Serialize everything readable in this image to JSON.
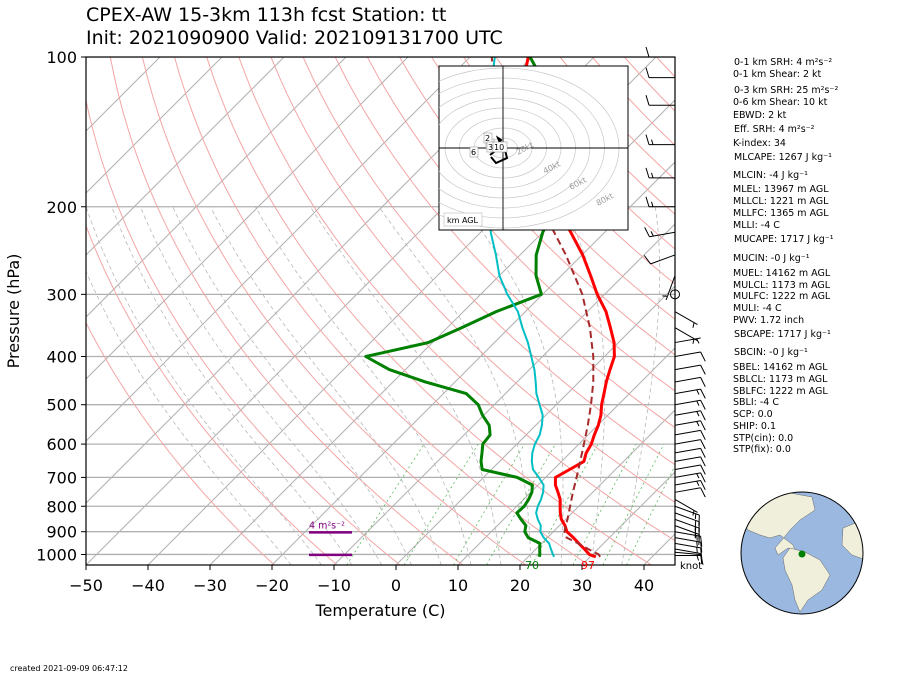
{
  "title_line1": "CPEX-AW 15-3km  113h fcst  Station: tt",
  "title_line2": "Init: 2021090900  Valid: 202109131700 UTC",
  "created": "created 2021-09-09 06:47:12",
  "colors": {
    "temperature": "#ff0000",
    "dewpoint": "#008000",
    "wetbulb": "#00bfc4",
    "parcel": "#a52a2a",
    "srh": "#800080",
    "globe_ocean": "#9ab8e0",
    "globe_land": "#efefdb",
    "station": "#008000"
  },
  "chart_data": {
    "type": "line",
    "title": "CPEX-AW 15-3km  113h fcst  Station: tt",
    "subtitle": "Init: 2021090900  Valid: 202109131700 UTC",
    "xlabel": "Temperature (C)",
    "ylabel": "Pressure (hPa)",
    "xlim": [
      -50,
      45
    ],
    "ylim": [
      1050,
      100
    ],
    "y_scale": "log",
    "x_ticks": [
      -50,
      -40,
      -30,
      -20,
      -10,
      0,
      10,
      20,
      30,
      40
    ],
    "y_ticks": [
      100,
      200,
      300,
      400,
      500,
      600,
      700,
      800,
      900,
      1000
    ],
    "grid": true,
    "series": [
      {
        "key": "temperature",
        "pressure": [
          1011,
          1000,
          975,
          950,
          925,
          900,
          875,
          850,
          825,
          800,
          775,
          750,
          725,
          700,
          675,
          650,
          625,
          600,
          575,
          550,
          525,
          500,
          475,
          450,
          425,
          400,
          375,
          350,
          325,
          300,
          275,
          250,
          225,
          200,
          175,
          150,
          125,
          100
        ],
        "values": [
          30.9,
          29.5,
          27.8,
          26.0,
          24.2,
          22.2,
          20.9,
          19.3,
          18.1,
          17.0,
          15.9,
          14.4,
          12.8,
          11.6,
          12.6,
          13.6,
          12.6,
          12.0,
          11.0,
          10.1,
          8.9,
          7.3,
          5.9,
          4.4,
          3.0,
          1.6,
          -0.7,
          -3.7,
          -7.0,
          -11.2,
          -15.3,
          -19.9,
          -25.5,
          -31.9,
          -39.3,
          -46.6,
          -54.5,
          -60.6
        ]
      },
      {
        "key": "dewpoint",
        "pressure": [
          1011,
          1000,
          975,
          950,
          925,
          900,
          875,
          850,
          825,
          800,
          775,
          750,
          725,
          700,
          675,
          650,
          625,
          600,
          575,
          550,
          525,
          500,
          475,
          450,
          425,
          400,
          375,
          350,
          325,
          300,
          275,
          250,
          225,
          200,
          175,
          150,
          125,
          100
        ],
        "values": [
          21.8,
          21.5,
          20.6,
          19.7,
          16.9,
          15.4,
          14.6,
          12.8,
          11.1,
          11.2,
          10.8,
          10.2,
          9.1,
          5.4,
          -1.5,
          -3.0,
          -4.2,
          -5.5,
          -5.8,
          -7.5,
          -10.2,
          -12.6,
          -16.3,
          -24.8,
          -32.6,
          -38.5,
          -30.7,
          -27.7,
          -24.7,
          -20.2,
          -24.1,
          -27.4,
          -30.0,
          -32.0,
          -35.0,
          -39.2,
          -48.3,
          -60.3
        ]
      },
      {
        "key": "wetbulb",
        "pressure": [
          1011,
          1000,
          975,
          950,
          925,
          900,
          875,
          850,
          825,
          800,
          775,
          750,
          725,
          700,
          675,
          650,
          625,
          600,
          575,
          550,
          525,
          500,
          475,
          450,
          425,
          400,
          375,
          350,
          325,
          300,
          275,
          250,
          225,
          200,
          175,
          150,
          125,
          100
        ],
        "values": [
          24.2,
          23.6,
          22.4,
          21.2,
          19.4,
          17.9,
          17.0,
          15.5,
          14.2,
          13.4,
          12.8,
          12.0,
          10.9,
          8.9,
          6.7,
          5.2,
          3.9,
          2.9,
          2.2,
          1.0,
          -0.5,
          -2.7,
          -5.0,
          -7.0,
          -9.2,
          -11.8,
          -14.6,
          -17.9,
          -21.2,
          -25.7,
          -30.0,
          -33.9,
          -38.4,
          -42.5,
          -47.0,
          -52.4,
          -59.2,
          -66.0
        ]
      },
      {
        "key": "parcel",
        "pressure": [
          1011,
          1000,
          975,
          950,
          925,
          900,
          875,
          850,
          800,
          750,
          700,
          650,
          600,
          550,
          500,
          450,
          400,
          350,
          300,
          250,
          200,
          150,
          125,
          100
        ],
        "values": [
          31.6,
          31.0,
          28.4,
          25.9,
          23.1,
          21.8,
          21.0,
          20.3,
          18.6,
          16.8,
          15.0,
          13.0,
          10.8,
          8.4,
          5.6,
          2.3,
          -1.8,
          -7.0,
          -13.6,
          -22.6,
          -34.4,
          -49.9,
          -57.9,
          -66.5
        ]
      }
    ],
    "annotations": {
      "bottom_temperature_label": "97",
      "bottom_dewpoint_label": "70",
      "srh_label": "4 m²s⁻²",
      "wind_units_label": "knot",
      "hodograph_label": "km AGL",
      "hodograph_ring_labels": [
        "20kt",
        "40kt",
        "60kt",
        "80kt"
      ],
      "hodograph_height_labels": [
        "1",
        "2",
        "3",
        "6",
        "10"
      ]
    },
    "wind_barbs": {
      "pressure": [
        1005,
        990,
        975,
        950,
        925,
        900,
        875,
        850,
        825,
        800,
        775,
        750,
        725,
        700,
        675,
        650,
        625,
        600,
        575,
        550,
        525,
        500,
        475,
        450,
        425,
        400,
        375,
        350,
        325,
        300,
        275,
        250,
        225,
        200,
        175,
        150,
        125,
        110,
        100
      ],
      "speed_kt": [
        8,
        10,
        10,
        15,
        15,
        15,
        15,
        20,
        20,
        15,
        5,
        10,
        15,
        15,
        10,
        10,
        10,
        10,
        10,
        15,
        15,
        15,
        15,
        10,
        10,
        10,
        5,
        5,
        5,
        0,
        5,
        10,
        15,
        15,
        15,
        15,
        10,
        10,
        10
      ],
      "direction_deg": [
        90,
        95,
        100,
        100,
        100,
        100,
        110,
        110,
        110,
        110,
        120,
        80,
        80,
        80,
        80,
        80,
        80,
        80,
        80,
        80,
        80,
        80,
        80,
        80,
        80,
        80,
        80,
        120,
        120,
        0,
        200,
        250,
        260,
        270,
        270,
        270,
        270,
        270,
        270
      ]
    }
  },
  "indices": [
    "0-1 km SRH: 4 m²s⁻²",
    "0-1 km Shear: 2 kt",
    "0-3 km SRH: 25 m²s⁻²",
    "0-6 km Shear: 10 kt",
    "EBWD: 2 kt",
    "Eff. SRH: 4 m²s⁻²",
    "K-index: 34",
    "MLCAPE: 1267 J kg⁻¹",
    "MLCIN: -4 J kg⁻¹",
    "MLEL: 13967 m AGL",
    "MLLCL: 1221 m AGL",
    "MLLFC: 1365 m AGL",
    "MLLI: -4 C",
    "MUCAPE: 1717 J kg⁻¹",
    "MUCIN: -0 J kg⁻¹",
    "MUEL: 14162 m AGL",
    "MULCL: 1173 m AGL",
    "MULFC: 1222 m AGL",
    "MULI: -4 C",
    "PWV: 1.72 inch",
    "SBCAPE: 1717 J kg⁻¹",
    "SBCIN: -0 J kg⁻¹",
    "SBEL: 14162 m AGL",
    "SBLCL: 1173 m AGL",
    "SBLFC: 1222 m AGL",
    "SBLI: -4 C",
    "SCP: 0.0",
    "SHIP: 0.1",
    "STP(cin): 0.0",
    "STP(fix): 0.0"
  ]
}
